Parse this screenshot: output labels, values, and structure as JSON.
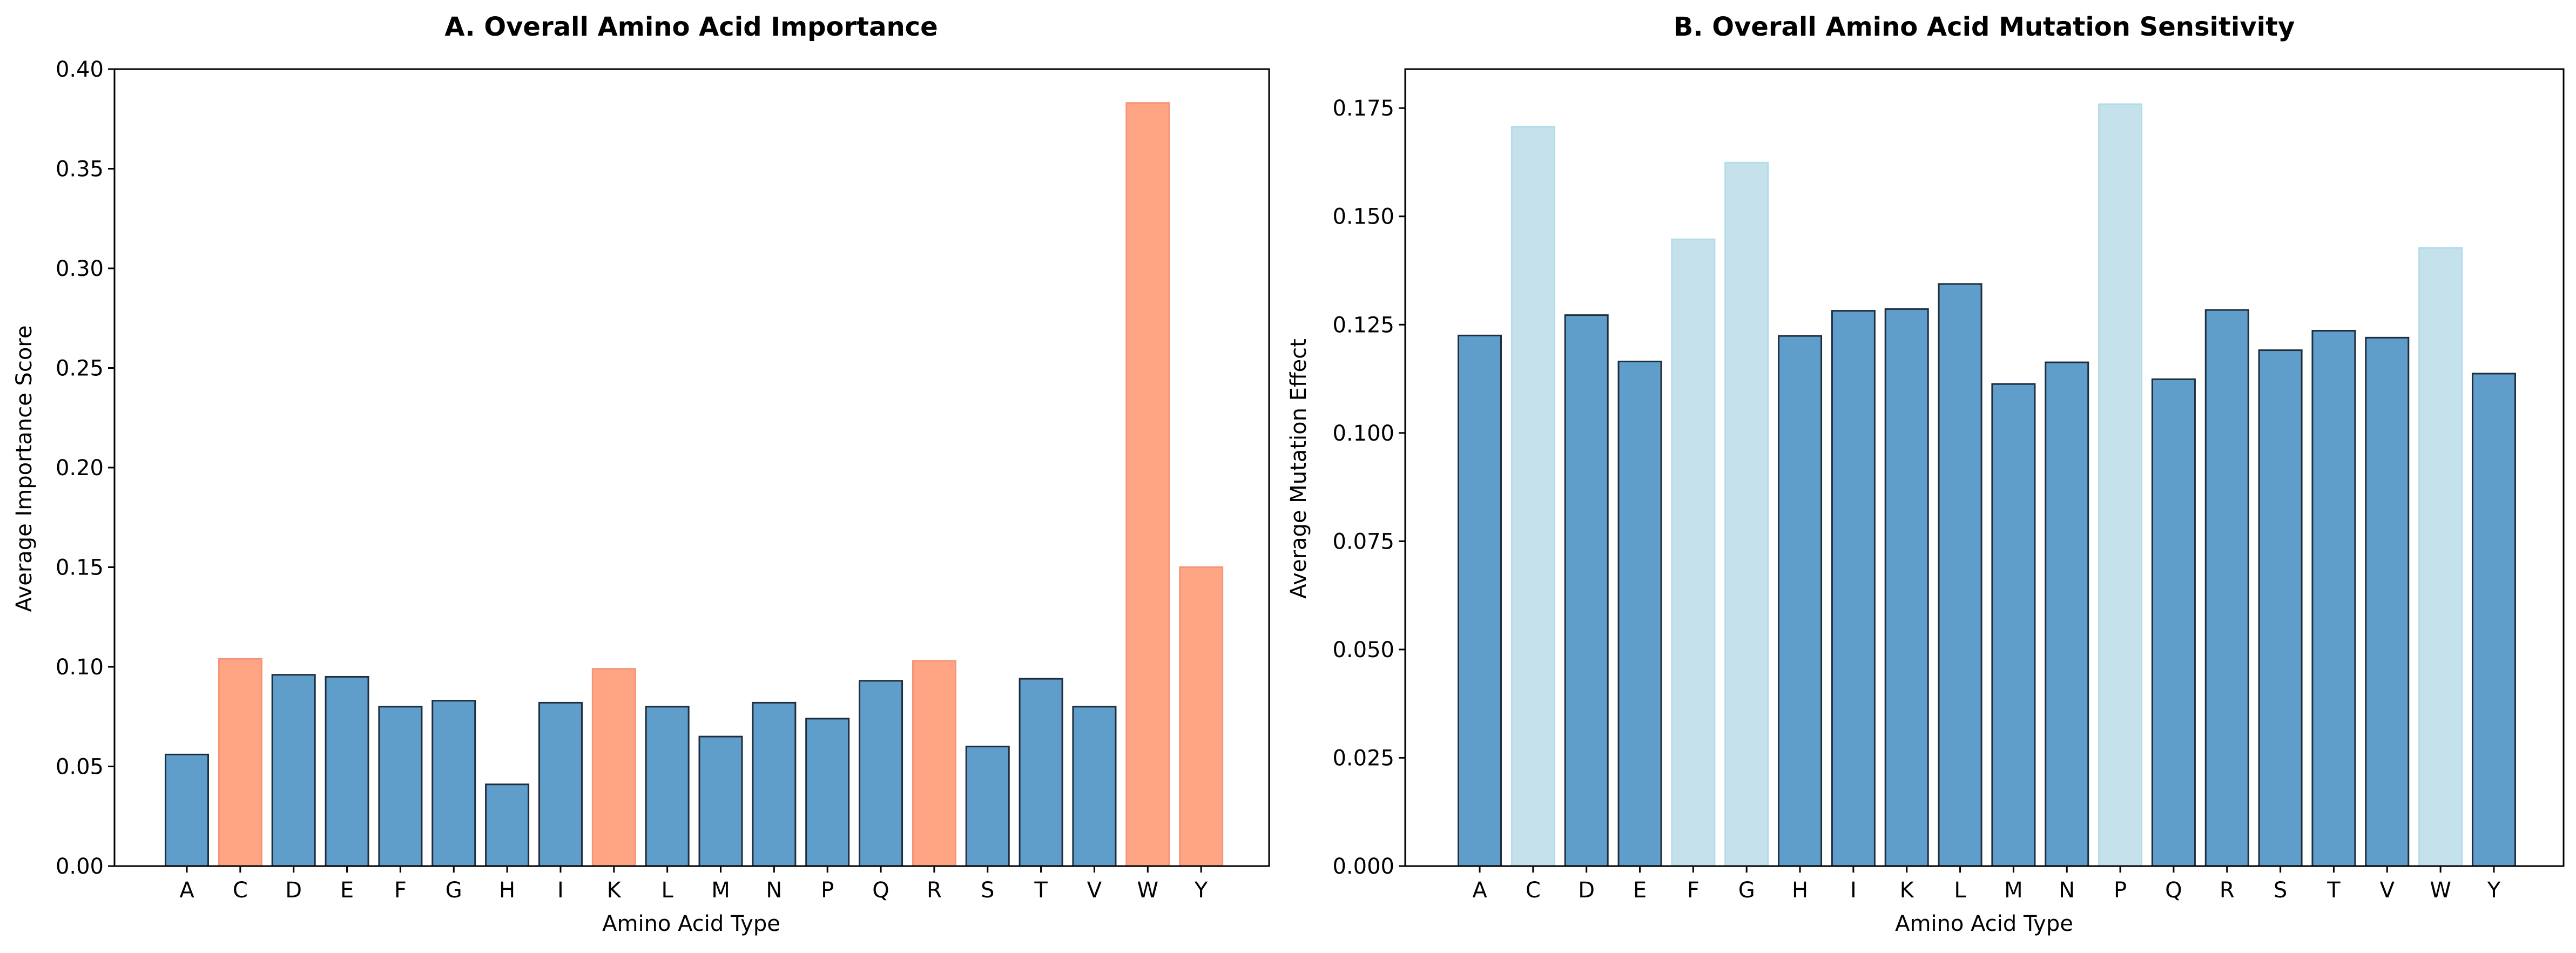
{
  "chart_data": [
    {
      "type": "bar",
      "title": "A. Overall Amino Acid Importance",
      "xlabel": "Amino Acid Type",
      "ylabel": "Average Importance Score",
      "ylim": [
        0,
        0.4
      ],
      "yticks": [
        "0.00",
        "0.05",
        "0.10",
        "0.15",
        "0.20",
        "0.25",
        "0.30",
        "0.35",
        "0.40"
      ],
      "categories": [
        "A",
        "C",
        "D",
        "E",
        "F",
        "G",
        "H",
        "I",
        "K",
        "L",
        "M",
        "N",
        "P",
        "Q",
        "R",
        "S",
        "T",
        "V",
        "W",
        "Y"
      ],
      "values": [
        0.056,
        0.104,
        0.096,
        0.095,
        0.08,
        0.083,
        0.041,
        0.082,
        0.099,
        0.08,
        0.065,
        0.082,
        0.074,
        0.093,
        0.103,
        0.06,
        0.094,
        0.08,
        0.383,
        0.15
      ],
      "highlighted": [
        false,
        true,
        false,
        false,
        false,
        false,
        false,
        false,
        true,
        false,
        false,
        false,
        false,
        false,
        true,
        false,
        false,
        false,
        true,
        true
      ],
      "colors": {
        "normal_fill": "#5f9ecb",
        "normal_edge": "#1f2d3d",
        "highlight_fill": "#ffa584",
        "highlight_edge": "#f4957a"
      },
      "grid": false
    },
    {
      "type": "bar",
      "title": "B. Overall Amino Acid Mutation Sensitivity",
      "xlabel": "Amino Acid Type",
      "ylabel": "Average Mutation Effect",
      "ylim": [
        0,
        0.184
      ],
      "yticks": [
        "0.000",
        "0.025",
        "0.050",
        "0.075",
        "0.100",
        "0.125",
        "0.150",
        "0.175"
      ],
      "categories": [
        "A",
        "C",
        "D",
        "E",
        "F",
        "G",
        "H",
        "I",
        "K",
        "L",
        "M",
        "N",
        "P",
        "Q",
        "R",
        "S",
        "T",
        "V",
        "W",
        "Y"
      ],
      "values": [
        0.1225,
        0.1707,
        0.1272,
        0.1165,
        0.1447,
        0.1624,
        0.1224,
        0.1282,
        0.1286,
        0.1344,
        0.1113,
        0.1163,
        0.1759,
        0.1124,
        0.1284,
        0.1191,
        0.1236,
        0.122,
        0.1427,
        0.1137
      ],
      "highlighted": [
        false,
        true,
        false,
        false,
        true,
        true,
        false,
        false,
        false,
        false,
        false,
        false,
        true,
        false,
        false,
        false,
        false,
        false,
        true,
        false
      ],
      "colors": {
        "normal_fill": "#5f9ecb",
        "normal_edge": "#1f2d3d",
        "highlight_fill": "#c5e2ec",
        "highlight_edge": "#b3dce9"
      },
      "grid": false
    }
  ]
}
